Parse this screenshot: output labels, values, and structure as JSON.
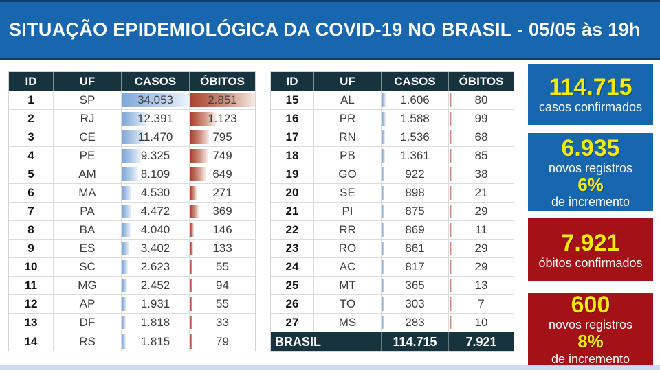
{
  "title": "SITUAÇÃO EPIDEMIOLÓGICA DA COVID-19 NO BRASIL - 05/05 às 19h",
  "bar_scale": {
    "casos_max": 34053,
    "obitos_max": 2851
  },
  "tables": [
    {
      "columns": [
        "ID",
        "UF",
        "CASOS",
        "ÓBITOS"
      ],
      "rows": [
        {
          "id": "1",
          "uf": "SP",
          "casos": "34.053",
          "casos_value": 34053,
          "obitos": "2.851",
          "obitos_value": 2851
        },
        {
          "id": "2",
          "uf": "RJ",
          "casos": "12.391",
          "casos_value": 12391,
          "obitos": "1.123",
          "obitos_value": 1123
        },
        {
          "id": "3",
          "uf": "CE",
          "casos": "11.470",
          "casos_value": 11470,
          "obitos": "795",
          "obitos_value": 795
        },
        {
          "id": "4",
          "uf": "PE",
          "casos": "9.325",
          "casos_value": 9325,
          "obitos": "749",
          "obitos_value": 749
        },
        {
          "id": "5",
          "uf": "AM",
          "casos": "8.109",
          "casos_value": 8109,
          "obitos": "649",
          "obitos_value": 649
        },
        {
          "id": "6",
          "uf": "MA",
          "casos": "4.530",
          "casos_value": 4530,
          "obitos": "271",
          "obitos_value": 271
        },
        {
          "id": "7",
          "uf": "PA",
          "casos": "4.472",
          "casos_value": 4472,
          "obitos": "369",
          "obitos_value": 369
        },
        {
          "id": "8",
          "uf": "BA",
          "casos": "4.040",
          "casos_value": 4040,
          "obitos": "146",
          "obitos_value": 146
        },
        {
          "id": "9",
          "uf": "ES",
          "casos": "3.402",
          "casos_value": 3402,
          "obitos": "133",
          "obitos_value": 133
        },
        {
          "id": "10",
          "uf": "SC",
          "casos": "2.623",
          "casos_value": 2623,
          "obitos": "55",
          "obitos_value": 55
        },
        {
          "id": "11",
          "uf": "MG",
          "casos": "2.452",
          "casos_value": 2452,
          "obitos": "94",
          "obitos_value": 94
        },
        {
          "id": "12",
          "uf": "AP",
          "casos": "1.931",
          "casos_value": 1931,
          "obitos": "55",
          "obitos_value": 55
        },
        {
          "id": "13",
          "uf": "DF",
          "casos": "1.818",
          "casos_value": 1818,
          "obitos": "33",
          "obitos_value": 33
        },
        {
          "id": "14",
          "uf": "RS",
          "casos": "1.815",
          "casos_value": 1815,
          "obitos": "79",
          "obitos_value": 79
        }
      ]
    },
    {
      "columns": [
        "ID",
        "UF",
        "CASOS",
        "ÓBITOS"
      ],
      "rows": [
        {
          "id": "15",
          "uf": "AL",
          "casos": "1.606",
          "casos_value": 1606,
          "obitos": "80",
          "obitos_value": 80
        },
        {
          "id": "16",
          "uf": "PR",
          "casos": "1.588",
          "casos_value": 1588,
          "obitos": "99",
          "obitos_value": 99
        },
        {
          "id": "17",
          "uf": "RN",
          "casos": "1.536",
          "casos_value": 1536,
          "obitos": "68",
          "obitos_value": 68
        },
        {
          "id": "18",
          "uf": "PB",
          "casos": "1.361",
          "casos_value": 1361,
          "obitos": "85",
          "obitos_value": 85
        },
        {
          "id": "19",
          "uf": "GO",
          "casos": "922",
          "casos_value": 922,
          "obitos": "38",
          "obitos_value": 38
        },
        {
          "id": "20",
          "uf": "SE",
          "casos": "898",
          "casos_value": 898,
          "obitos": "21",
          "obitos_value": 21
        },
        {
          "id": "21",
          "uf": "PI",
          "casos": "875",
          "casos_value": 875,
          "obitos": "29",
          "obitos_value": 29
        },
        {
          "id": "22",
          "uf": "RR",
          "casos": "869",
          "casos_value": 869,
          "obitos": "11",
          "obitos_value": 11
        },
        {
          "id": "23",
          "uf": "RO",
          "casos": "861",
          "casos_value": 861,
          "obitos": "29",
          "obitos_value": 29
        },
        {
          "id": "24",
          "uf": "AC",
          "casos": "817",
          "casos_value": 817,
          "obitos": "29",
          "obitos_value": 29
        },
        {
          "id": "25",
          "uf": "MT",
          "casos": "365",
          "casos_value": 365,
          "obitos": "13",
          "obitos_value": 13
        },
        {
          "id": "26",
          "uf": "TO",
          "casos": "303",
          "casos_value": 303,
          "obitos": "7",
          "obitos_value": 7
        },
        {
          "id": "27",
          "uf": "MS",
          "casos": "283",
          "casos_value": 283,
          "obitos": "10",
          "obitos_value": 10
        }
      ],
      "total": {
        "label": "BRASIL",
        "casos": "114.715",
        "casos_value": 114715,
        "obitos": "7.921",
        "obitos_value": 7921
      }
    }
  ],
  "cards": [
    {
      "style": "blue",
      "lines": [
        {
          "kind": "value",
          "text": "114.715"
        },
        {
          "kind": "label",
          "text": "casos confirmados"
        }
      ]
    },
    {
      "style": "blue",
      "lines": [
        {
          "kind": "value",
          "text": "6.935"
        },
        {
          "kind": "label",
          "text": "novos registros"
        },
        {
          "kind": "percent",
          "text": "6%"
        },
        {
          "kind": "label",
          "text": "de incremento"
        }
      ]
    },
    {
      "style": "red",
      "lines": [
        {
          "kind": "value",
          "text": "7.921"
        },
        {
          "kind": "label",
          "text": "óbitos confirmados"
        }
      ]
    },
    {
      "style": "red",
      "lines": [
        {
          "kind": "value",
          "text": "600"
        },
        {
          "kind": "label",
          "text": "novos registros"
        },
        {
          "kind": "percent",
          "text": "8%"
        },
        {
          "kind": "label",
          "text": "de incremento"
        }
      ]
    }
  ],
  "palette": {
    "title_bar_blue": "#1766ae",
    "title_border_navy": "#0e3f72",
    "table_header_dark": "#17333e",
    "data_bar_blue": "#7ea7d8",
    "data_bar_red": "#a8432b",
    "card_blue": "#1766ae",
    "card_red": "#a41116",
    "highlight_yellow": "#f4eb0c",
    "bottom_strip_blue": "#ccdcee"
  },
  "chart_data": {
    "type": "table",
    "title": "SITUAÇÃO EPIDEMIOLÓGICA DA COVID-19 NO BRASIL - 05/05 às 19h",
    "columns": [
      "ID",
      "UF",
      "CASOS",
      "ÓBITOS"
    ],
    "rows": [
      [
        1,
        "SP",
        34053,
        2851
      ],
      [
        2,
        "RJ",
        12391,
        1123
      ],
      [
        3,
        "CE",
        11470,
        795
      ],
      [
        4,
        "PE",
        9325,
        749
      ],
      [
        5,
        "AM",
        8109,
        649
      ],
      [
        6,
        "MA",
        4530,
        271
      ],
      [
        7,
        "PA",
        4472,
        369
      ],
      [
        8,
        "BA",
        4040,
        146
      ],
      [
        9,
        "ES",
        3402,
        133
      ],
      [
        10,
        "SC",
        2623,
        55
      ],
      [
        11,
        "MG",
        2452,
        94
      ],
      [
        12,
        "AP",
        1931,
        55
      ],
      [
        13,
        "DF",
        1818,
        33
      ],
      [
        14,
        "RS",
        1815,
        79
      ],
      [
        15,
        "AL",
        1606,
        80
      ],
      [
        16,
        "PR",
        1588,
        99
      ],
      [
        17,
        "RN",
        1536,
        68
      ],
      [
        18,
        "PB",
        1361,
        85
      ],
      [
        19,
        "GO",
        922,
        38
      ],
      [
        20,
        "SE",
        898,
        21
      ],
      [
        21,
        "PI",
        875,
        29
      ],
      [
        22,
        "RR",
        869,
        11
      ],
      [
        23,
        "RO",
        861,
        29
      ],
      [
        24,
        "AC",
        817,
        29
      ],
      [
        25,
        "MT",
        365,
        13
      ],
      [
        26,
        "TO",
        303,
        7
      ],
      [
        27,
        "MS",
        283,
        10
      ]
    ],
    "total_row": [
      "BRASIL",
      114715,
      7921
    ],
    "summary": {
      "casos_confirmados": 114715,
      "novos_registros_casos": 6935,
      "incremento_casos": "6%",
      "obitos_confirmados": 7921,
      "novos_registros_obitos": 600,
      "incremento_obitos": "8%"
    },
    "layout_hints": "CASOS cells carry blue gradient data bars and ÓBITOS cells red gradient data bars, lengths proportional to value (max CASOS 34053 = SP, max ÓBITOS 2851 = SP)"
  }
}
